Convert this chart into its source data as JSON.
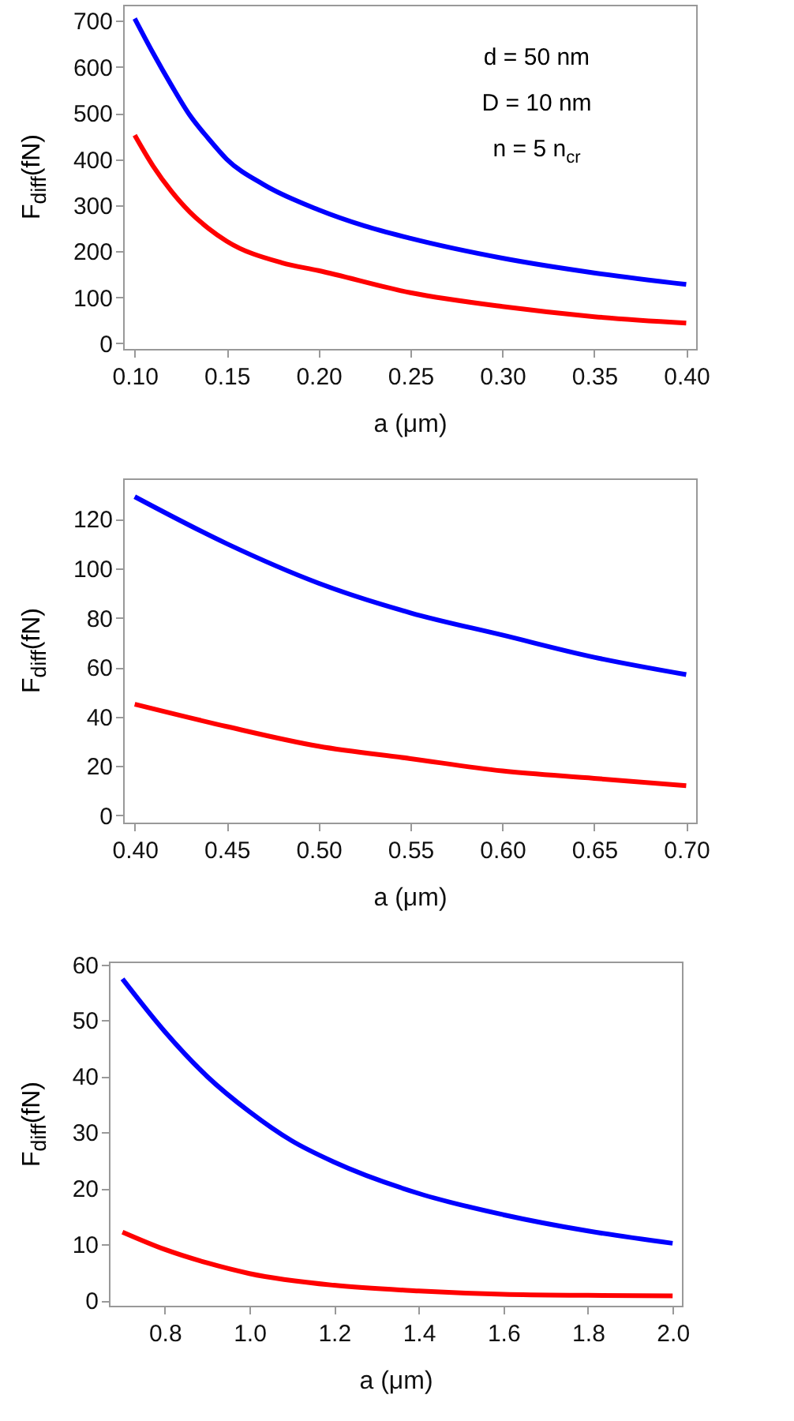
{
  "chart_data": [
    {
      "type": "line",
      "xlabel": "a (μm)",
      "ylabel": "F$_{diff}$(fN)",
      "annotations": [
        "d = 50 nm",
        "D = 10 nm",
        "n = 5 n$_{cr}$"
      ],
      "xlim": [
        0.0937,
        0.4054
      ],
      "ylim": [
        -12,
        735
      ],
      "xticks": [
        {
          "value": 0.1,
          "label": "0.10"
        },
        0.15,
        {
          "value": 0.2,
          "label": "0.20"
        },
        0.25,
        {
          "value": 0.3,
          "label": "0.30"
        },
        0.35,
        {
          "value": 0.4,
          "label": "0.40"
        }
      ],
      "yticks": [
        0,
        100,
        200,
        300,
        400,
        500,
        600,
        700
      ],
      "series": [
        {
          "color": "#0000ff",
          "x": [
            0.1,
            0.11,
            0.12,
            0.13,
            0.14,
            0.15,
            0.17,
            0.2,
            0.225,
            0.25,
            0.3,
            0.35,
            0.4
          ],
          "values": [
            705,
            630,
            560,
            495,
            445,
            400,
            345,
            290,
            255,
            228,
            185,
            153,
            128
          ]
        },
        {
          "color": "#ff0000",
          "x": [
            0.1,
            0.11,
            0.12,
            0.13,
            0.14,
            0.15,
            0.18,
            0.2,
            0.25,
            0.3,
            0.35,
            0.4
          ],
          "values": [
            452,
            385,
            330,
            285,
            250,
            222,
            175,
            158,
            110,
            80,
            58,
            44
          ]
        }
      ]
    },
    {
      "type": "line",
      "xlabel": "a (μm)",
      "ylabel": "F$_{diff}$(fN)",
      "xlim": [
        0.3937,
        0.7054
      ],
      "ylim": [
        -2.9,
        136.4
      ],
      "xticks": [
        {
          "value": 0.4,
          "label": "0.40"
        },
        0.45,
        {
          "value": 0.5,
          "label": "0.50"
        },
        0.55,
        {
          "value": 0.6,
          "label": "0.60"
        },
        0.65,
        {
          "value": 0.7,
          "label": "0.70"
        }
      ],
      "yticks": [
        0,
        20,
        40,
        60,
        80,
        100,
        120
      ],
      "series": [
        {
          "color": "#0000ff",
          "x": [
            0.4,
            0.45,
            0.5,
            0.55,
            0.6,
            0.65,
            0.7
          ],
          "values": [
            129,
            110,
            94,
            82,
            73,
            64,
            57
          ]
        },
        {
          "color": "#ff0000",
          "x": [
            0.4,
            0.45,
            0.5,
            0.55,
            0.6,
            0.65,
            0.7
          ],
          "values": [
            45,
            36,
            28,
            23,
            18,
            15,
            12
          ]
        }
      ]
    },
    {
      "type": "line",
      "xlabel": "a (μm)",
      "ylabel": "F$_{diff}$(fN)",
      "xlim": [
        0.668,
        2.022
      ],
      "ylim": [
        -0.95,
        60.5
      ],
      "xticks": [
        0.8,
        {
          "value": 1,
          "label": "1.0"
        },
        1.2,
        1.4,
        1.6,
        1.8,
        {
          "value": 2,
          "label": "2.0"
        }
      ],
      "yticks": [
        0,
        10,
        20,
        30,
        40,
        50,
        60
      ],
      "series": [
        {
          "color": "#0000ff",
          "x": [
            0.7,
            0.8,
            0.9,
            1.0,
            1.1,
            1.2,
            1.4,
            1.6,
            1.8,
            2.0
          ],
          "values": [
            57.4,
            48,
            40,
            33.7,
            28.5,
            24.7,
            19.1,
            15.3,
            12.4,
            10.2
          ]
        },
        {
          "color": "#ff0000",
          "x": [
            0.7,
            0.8,
            0.9,
            1.0,
            1.2,
            1.4,
            1.6,
            1.8,
            2.0
          ],
          "values": [
            12.2,
            9.1,
            6.7,
            4.8,
            2.7,
            1.7,
            1.1,
            0.9,
            0.8
          ]
        }
      ]
    }
  ]
}
